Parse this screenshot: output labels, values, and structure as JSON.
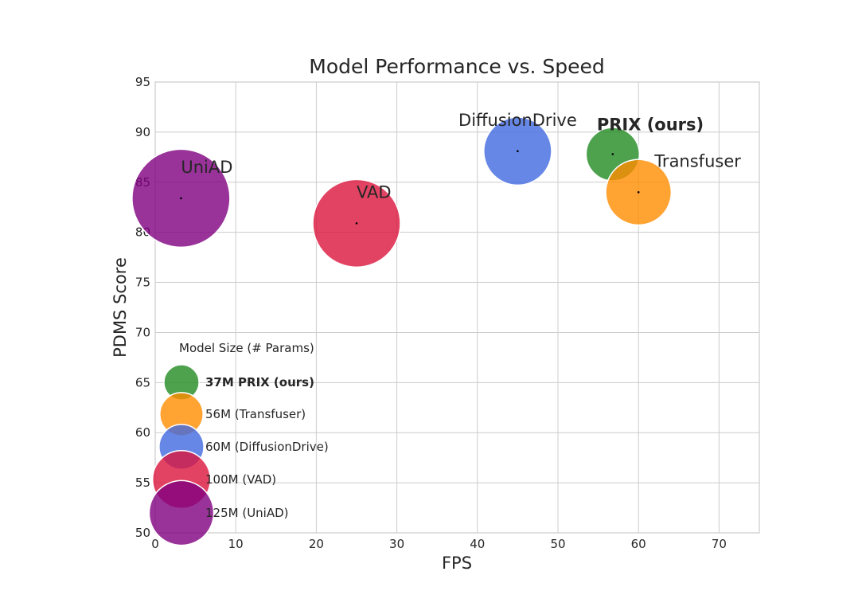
{
  "chart_data": {
    "type": "scatter",
    "title": "Model Performance vs. Speed",
    "xlabel": "FPS",
    "ylabel": "PDMS Score",
    "xlim": [
      0,
      75
    ],
    "ylim": [
      50,
      95
    ],
    "xticks": [
      "0",
      "10",
      "20",
      "30",
      "40",
      "50",
      "60",
      "70"
    ],
    "yticks": [
      "50",
      "55",
      "60",
      "65",
      "70",
      "75",
      "80",
      "85",
      "90",
      "95"
    ],
    "grid": true,
    "size_encoding": "Model Size (# Params)",
    "points": [
      {
        "label": "UniAD",
        "x": 3.2,
        "y": 83.4,
        "params_m": 125,
        "color": "#800080",
        "bold": false
      },
      {
        "label": "VAD",
        "x": 25.0,
        "y": 80.9,
        "params_m": 100,
        "color": "#dc143c",
        "bold": false
      },
      {
        "label": "DiffusionDrive",
        "x": 45.0,
        "y": 88.1,
        "params_m": 60,
        "color": "#4169e1",
        "bold": false
      },
      {
        "label": "PRIX (ours)",
        "x": 56.8,
        "y": 87.8,
        "params_m": 37,
        "color": "#228b22",
        "bold": true
      },
      {
        "label": "Transfuser",
        "x": 60.0,
        "y": 84.0,
        "params_m": 56,
        "color": "#ff8c00",
        "bold": false
      }
    ],
    "legend": {
      "title": "Model Size (# Params)",
      "placement": "lower-left",
      "entries": [
        {
          "label": "37M PRIX (ours)",
          "color": "#228b22",
          "params_m": 37,
          "bold": true
        },
        {
          "label": "56M (Transfuser)",
          "color": "#ff8c00",
          "params_m": 56,
          "bold": false
        },
        {
          "label": "60M (DiffusionDrive)",
          "color": "#4169e1",
          "params_m": 60,
          "bold": false
        },
        {
          "label": "100M (VAD)",
          "color": "#dc143c",
          "params_m": 100,
          "bold": false
        },
        {
          "label": "125M (UniAD)",
          "color": "#800080",
          "params_m": 125,
          "bold": false
        }
      ]
    }
  }
}
